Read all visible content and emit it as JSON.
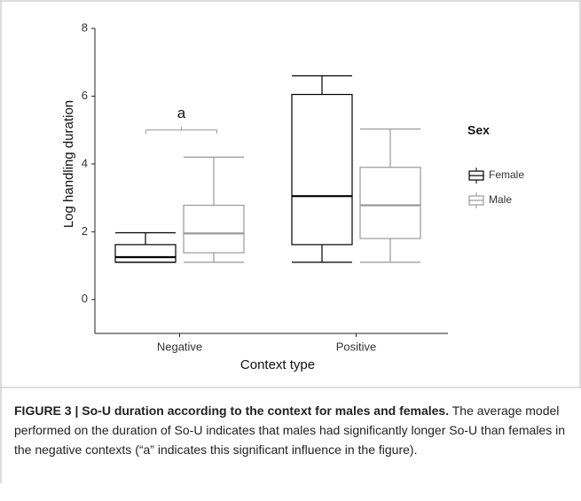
{
  "chart_data": {
    "type": "box",
    "x_label": "Context type",
    "y_label": "Log handling duration",
    "categories": [
      "Negative",
      "Positive"
    ],
    "legend_title": "Sex",
    "series": [
      {
        "name": "Female",
        "color": "#000000",
        "values": [
          {
            "whislo": 1.1,
            "q1": 1.1,
            "med": 1.25,
            "q3": 1.62,
            "whishi": 1.97
          },
          {
            "whislo": 1.1,
            "q1": 1.62,
            "med": 3.05,
            "q3": 6.05,
            "whishi": 6.6
          }
        ]
      },
      {
        "name": "Male",
        "color": "#999999",
        "values": [
          {
            "whislo": 1.1,
            "q1": 1.38,
            "med": 1.95,
            "q3": 2.78,
            "whishi": 4.2
          },
          {
            "whislo": 1.1,
            "q1": 1.8,
            "med": 2.78,
            "q3": 3.9,
            "whishi": 5.03
          }
        ]
      }
    ],
    "annotations": [
      {
        "text": "a",
        "y": 5.0
      }
    ],
    "ylim": [
      -1,
      8
    ],
    "yticks": [
      0,
      2,
      4,
      6,
      8
    ],
    "grid": false
  },
  "caption": {
    "label": "FIGURE 3 | So-U duration according to the context for males and females.",
    "text": "The average model performed on the duration of So-U indicates that males had significantly longer So-U than females in the negative contexts (“a” indicates this significant influence in the figure)."
  }
}
